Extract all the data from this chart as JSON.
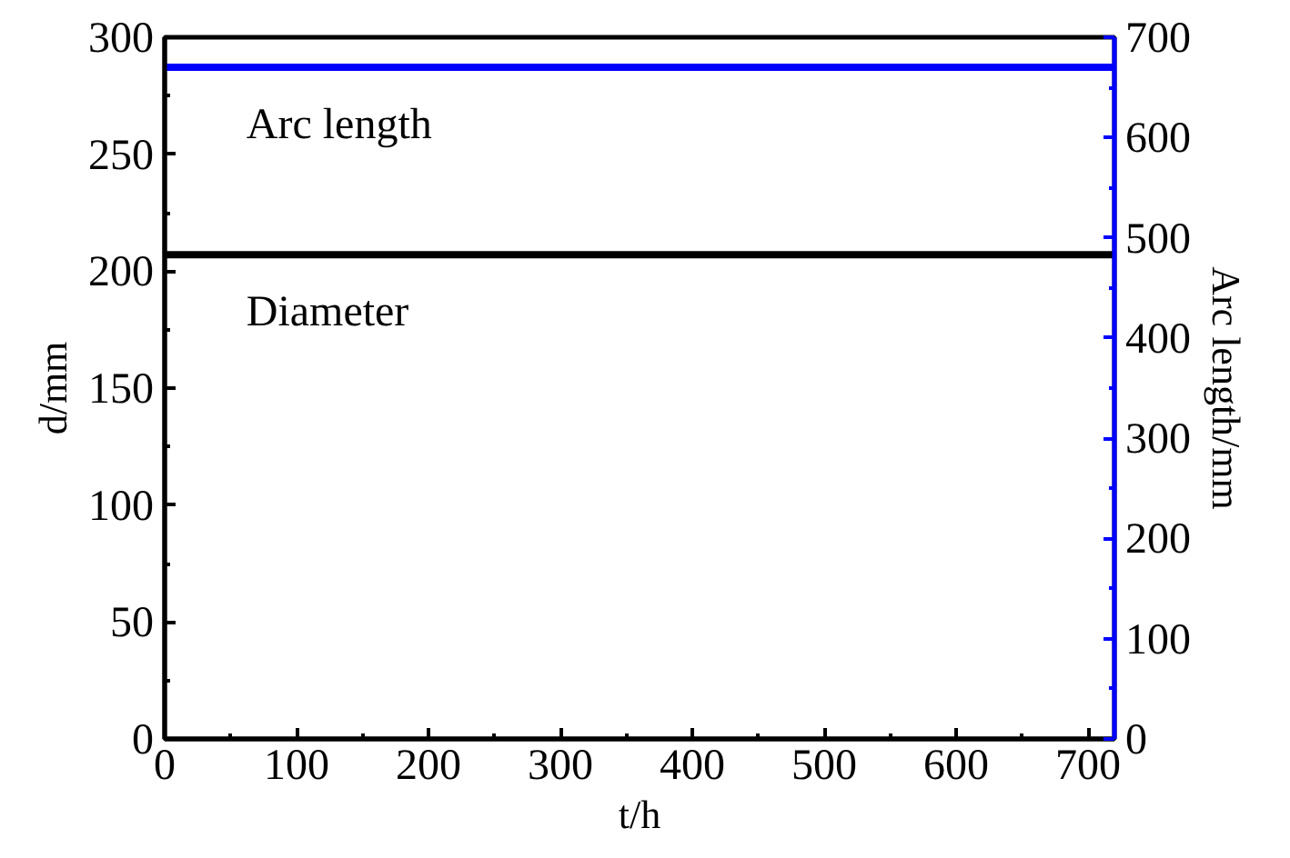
{
  "chart_data": {
    "type": "line",
    "xlabel": "t/h",
    "ylabel": "d/mm",
    "y2label": "Arc length/mm",
    "x": [
      0,
      720
    ],
    "series": [
      {
        "color": "#0000ff",
        "axis": "y2",
        "values": [
          670,
          670
        ]
      },
      {
        "color": "#000000",
        "values": [
          207,
          207
        ]
      }
    ],
    "annotations": [
      "Arc length",
      "Diameter"
    ],
    "xlim": [
      0,
      720
    ],
    "xticks": [
      0,
      100,
      200,
      300,
      400,
      500,
      600,
      700
    ],
    "ylim": [
      0,
      300
    ],
    "yticks": [
      0,
      50,
      100,
      150,
      200,
      250,
      300
    ],
    "y2lim": [
      0,
      700
    ],
    "y2ticks": [
      0,
      100,
      200,
      300,
      400,
      500,
      600,
      700
    ],
    "grid": false,
    "marker": "none",
    "line_style": "solid"
  }
}
